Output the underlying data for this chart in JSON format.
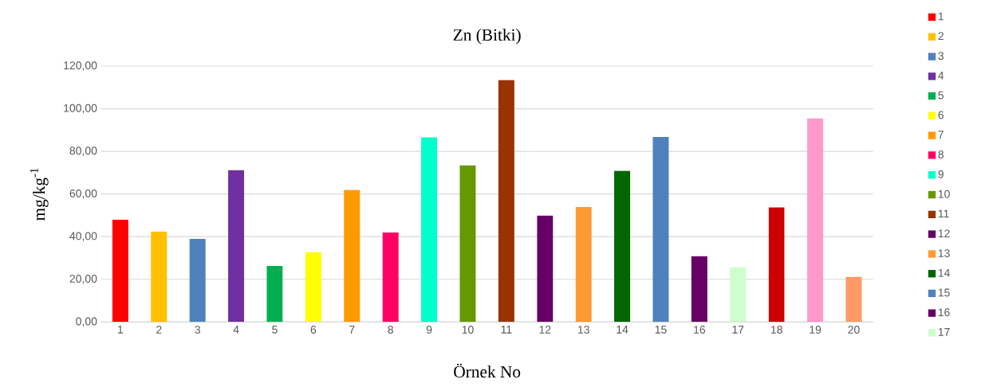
{
  "chart_data": {
    "type": "bar",
    "title": "Zn (Bitki)",
    "xlabel": "Örnek No",
    "ylabel": "mg/kg$^{-1}$",
    "categories": [
      "1",
      "2",
      "3",
      "4",
      "5",
      "6",
      "7",
      "8",
      "9",
      "10",
      "11",
      "12",
      "13",
      "14",
      "15",
      "16",
      "17",
      "18",
      "19",
      "20"
    ],
    "series": [
      {
        "name": "1",
        "color": "#ff0000",
        "values": [
          48.0,
          null,
          null,
          null,
          null,
          null,
          null,
          null,
          null,
          null,
          null,
          null,
          null,
          null,
          null,
          null,
          null,
          null,
          null,
          null
        ]
      },
      {
        "name": "2",
        "color": "#ffc000",
        "values": [
          null,
          42.4,
          null,
          null,
          null,
          null,
          null,
          null,
          null,
          null,
          null,
          null,
          null,
          null,
          null,
          null,
          null,
          null,
          null,
          null
        ]
      },
      {
        "name": "3",
        "color": "#4f81bd",
        "values": [
          null,
          null,
          39.0,
          null,
          null,
          null,
          null,
          null,
          null,
          null,
          null,
          null,
          null,
          null,
          null,
          null,
          null,
          null,
          null,
          null
        ]
      },
      {
        "name": "4",
        "color": "#7030a0",
        "values": [
          null,
          null,
          null,
          71.2,
          null,
          null,
          null,
          null,
          null,
          null,
          null,
          null,
          null,
          null,
          null,
          null,
          null,
          null,
          null,
          null
        ]
      },
      {
        "name": "5",
        "color": "#00b050",
        "values": [
          null,
          null,
          null,
          null,
          26.3,
          null,
          null,
          null,
          null,
          null,
          null,
          null,
          null,
          null,
          null,
          null,
          null,
          null,
          null,
          null
        ]
      },
      {
        "name": "6",
        "color": "#ffff00",
        "values": [
          null,
          null,
          null,
          null,
          null,
          32.7,
          null,
          null,
          null,
          null,
          null,
          null,
          null,
          null,
          null,
          null,
          null,
          null,
          null,
          null
        ]
      },
      {
        "name": "7",
        "color": "#ff9900",
        "values": [
          null,
          null,
          null,
          null,
          null,
          null,
          61.9,
          null,
          null,
          null,
          null,
          null,
          null,
          null,
          null,
          null,
          null,
          null,
          null,
          null
        ]
      },
      {
        "name": "8",
        "color": "#ff0066",
        "values": [
          null,
          null,
          null,
          null,
          null,
          null,
          null,
          42.0,
          null,
          null,
          null,
          null,
          null,
          null,
          null,
          null,
          null,
          null,
          null,
          null
        ]
      },
      {
        "name": "9",
        "color": "#00ffcc",
        "values": [
          null,
          null,
          null,
          null,
          null,
          null,
          null,
          null,
          86.6,
          null,
          null,
          null,
          null,
          null,
          null,
          null,
          null,
          null,
          null,
          null
        ]
      },
      {
        "name": "10",
        "color": "#669900",
        "values": [
          null,
          null,
          null,
          null,
          null,
          null,
          null,
          null,
          null,
          73.5,
          null,
          null,
          null,
          null,
          null,
          null,
          null,
          null,
          null,
          null
        ]
      },
      {
        "name": "11",
        "color": "#993300",
        "values": [
          null,
          null,
          null,
          null,
          null,
          null,
          null,
          null,
          null,
          null,
          113.5,
          null,
          null,
          null,
          null,
          null,
          null,
          null,
          null,
          null
        ]
      },
      {
        "name": "12",
        "color": "#660066",
        "values": [
          null,
          null,
          null,
          null,
          null,
          null,
          null,
          null,
          null,
          null,
          null,
          49.9,
          null,
          null,
          null,
          null,
          null,
          null,
          null,
          null
        ]
      },
      {
        "name": "13",
        "color": "#ff9933",
        "values": [
          null,
          null,
          null,
          null,
          null,
          null,
          null,
          null,
          null,
          null,
          null,
          null,
          54.0,
          null,
          null,
          null,
          null,
          null,
          null,
          null
        ]
      },
      {
        "name": "14",
        "color": "#006600",
        "values": [
          null,
          null,
          null,
          null,
          null,
          null,
          null,
          null,
          null,
          null,
          null,
          null,
          null,
          70.9,
          null,
          null,
          null,
          null,
          null,
          null
        ]
      },
      {
        "name": "15",
        "color": "#4f81bd",
        "values": [
          null,
          null,
          null,
          null,
          null,
          null,
          null,
          null,
          null,
          null,
          null,
          null,
          null,
          null,
          86.8,
          null,
          null,
          null,
          null,
          null
        ]
      },
      {
        "name": "16",
        "color": "#660066",
        "values": [
          null,
          null,
          null,
          null,
          null,
          null,
          null,
          null,
          null,
          null,
          null,
          null,
          null,
          null,
          null,
          30.8,
          null,
          null,
          null,
          null
        ]
      },
      {
        "name": "17",
        "color": "#ccffcc",
        "values": [
          null,
          null,
          null,
          null,
          null,
          null,
          null,
          null,
          null,
          null,
          null,
          null,
          null,
          null,
          null,
          null,
          25.6,
          null,
          null,
          null
        ]
      },
      {
        "color": "#cc0000",
        "values": [
          null,
          null,
          null,
          null,
          null,
          null,
          null,
          null,
          null,
          null,
          null,
          null,
          null,
          null,
          null,
          null,
          null,
          53.7,
          null,
          null
        ]
      },
      {
        "color": "#ff99cc",
        "values": [
          null,
          null,
          null,
          null,
          null,
          null,
          null,
          null,
          null,
          null,
          null,
          null,
          null,
          null,
          null,
          null,
          null,
          null,
          95.5,
          null
        ]
      },
      {
        "color": "#ff9966",
        "values": [
          null,
          null,
          null,
          null,
          null,
          null,
          null,
          null,
          null,
          null,
          null,
          null,
          null,
          null,
          null,
          null,
          null,
          null,
          null,
          21.1
        ]
      }
    ],
    "ylim": [
      0,
      120
    ],
    "yticks": [
      {
        "value": 0,
        "label": "0,00"
      },
      {
        "value": 20,
        "label": "20,00"
      },
      {
        "value": 40,
        "label": "40,00"
      },
      {
        "value": 60,
        "label": "60,00"
      },
      {
        "value": 80,
        "label": "80,00"
      },
      {
        "value": 100,
        "label": "100,00"
      },
      {
        "value": 120,
        "label": "120,00"
      }
    ],
    "grid": "y",
    "legend": "right"
  }
}
